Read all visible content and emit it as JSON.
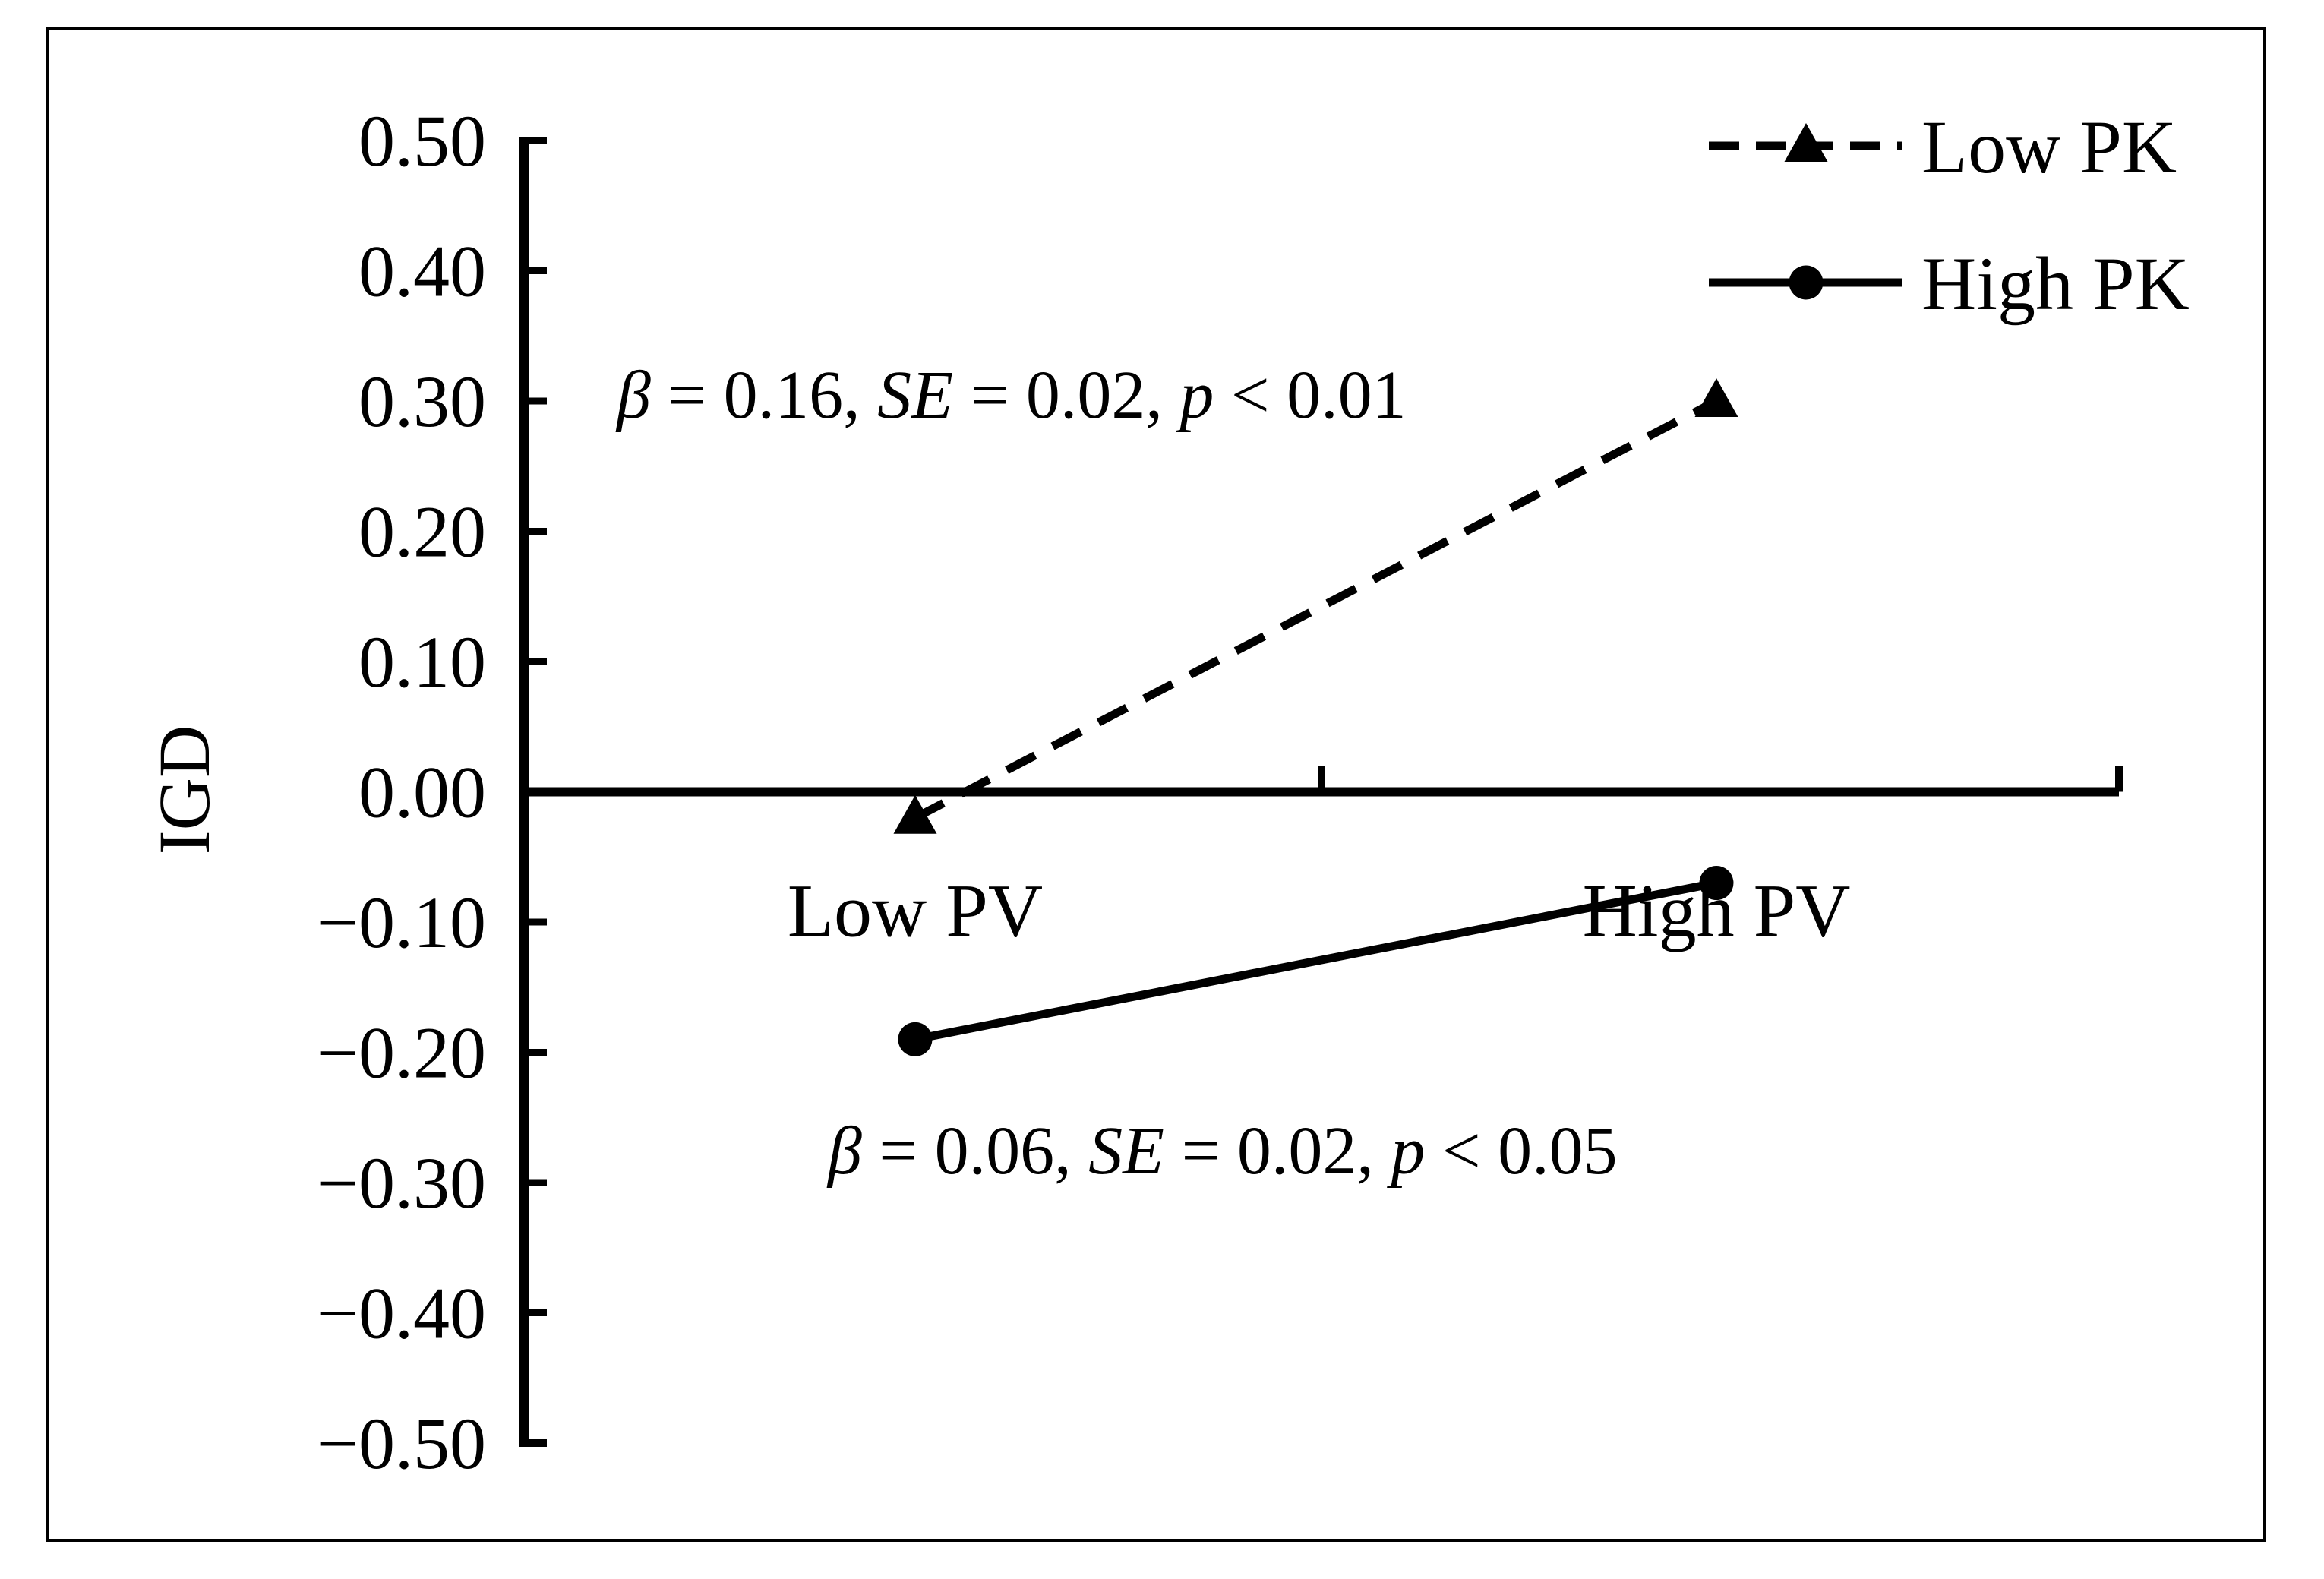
{
  "chart_data": {
    "type": "line",
    "title": "",
    "ylabel": "IGD",
    "xlabel": "",
    "categories": [
      "Low PV",
      "High PV"
    ],
    "ylim": [
      -0.5,
      0.5
    ],
    "yticks": [
      0.5,
      0.4,
      0.3,
      0.2,
      0.1,
      0.0,
      -0.1,
      -0.2,
      -0.3,
      -0.4,
      -0.5
    ],
    "ytick_labels": [
      "0.50",
      "0.40",
      "0.30",
      "0.20",
      "0.10",
      "0.00",
      "−0.10",
      "−0.20",
      "−0.30",
      "−0.40",
      "−0.50"
    ],
    "grid": false,
    "legend_position": "top-right",
    "series": [
      {
        "name": "Low PK",
        "values": [
          -0.02,
          0.3
        ],
        "line_style": "dashed",
        "marker": "triangle",
        "color": "#000000"
      },
      {
        "name": "High PK",
        "values": [
          -0.19,
          -0.07
        ],
        "line_style": "solid",
        "marker": "circle",
        "color": "#000000"
      }
    ],
    "annotations": [
      {
        "series": "Low PK",
        "beta": "0.16",
        "se": "0.02",
        "p": "0.01",
        "beta_symbol": "β",
        "se_symbol": "SE",
        "p_symbol": "p",
        "eq": " = ",
        "lt": " < ",
        "sep": ", "
      },
      {
        "series": "High PK",
        "beta": "0.06",
        "se": "0.02",
        "p": "0.05",
        "beta_symbol": "β",
        "se_symbol": "SE",
        "p_symbol": "p",
        "eq": " = ",
        "lt": " < ",
        "sep": ", "
      }
    ]
  }
}
